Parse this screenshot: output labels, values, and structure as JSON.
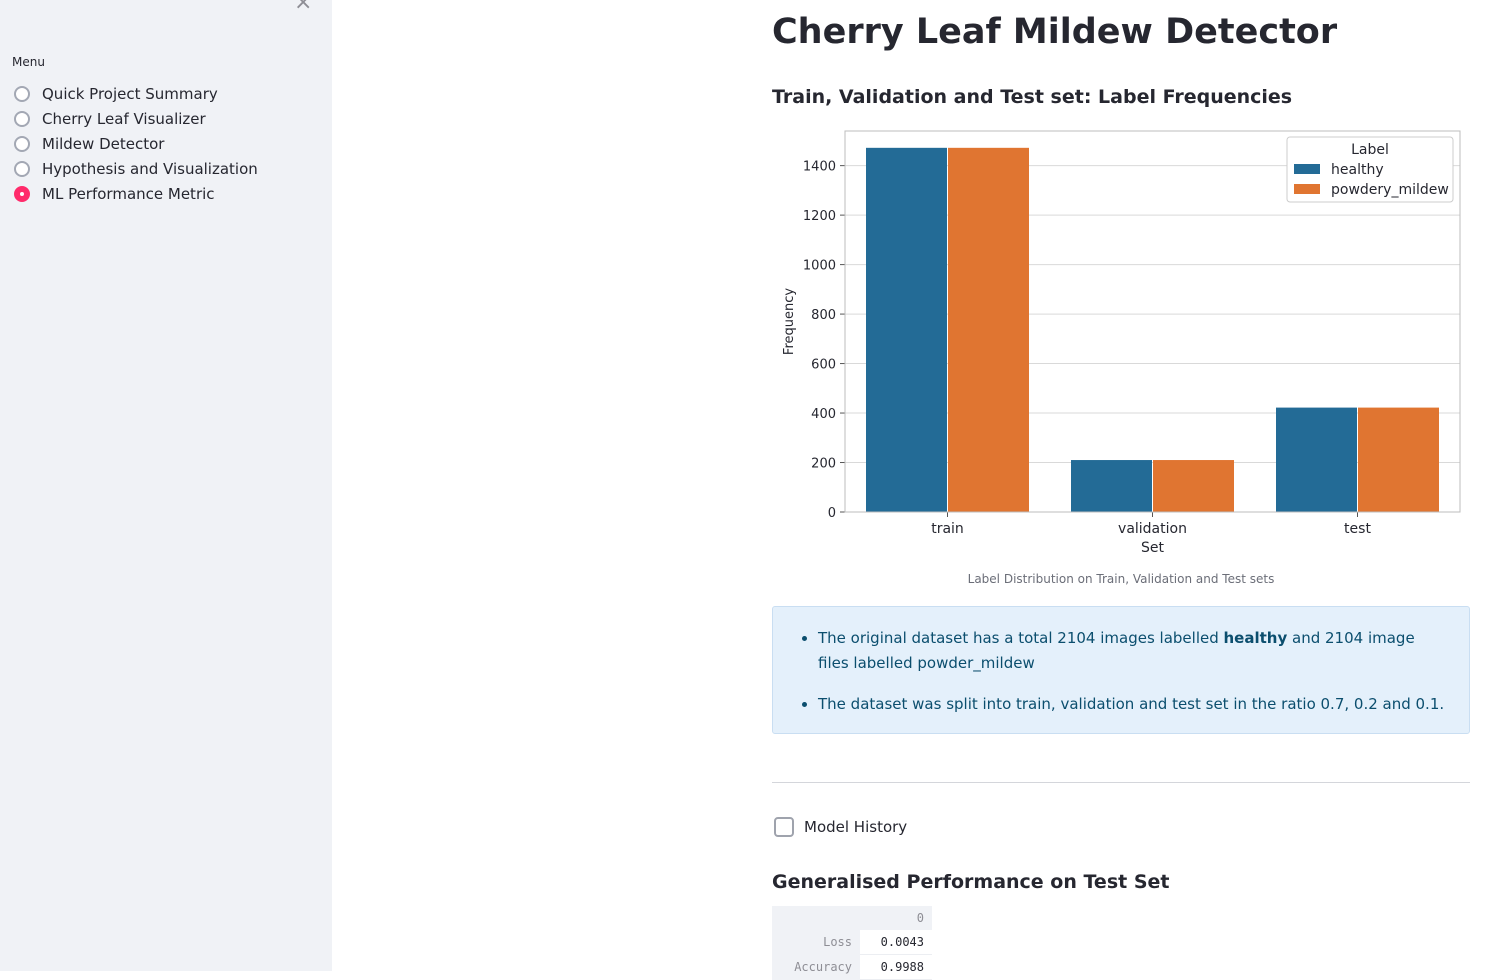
{
  "sidebar": {
    "close_glyph": "×",
    "menu_label": "Menu",
    "items": [
      {
        "label": "Quick Project Summary",
        "selected": false
      },
      {
        "label": "Cherry Leaf Visualizer",
        "selected": false
      },
      {
        "label": "Mildew Detector",
        "selected": false
      },
      {
        "label": "Hypothesis and Visualization",
        "selected": false
      },
      {
        "label": "ML Performance Metric",
        "selected": true
      }
    ]
  },
  "main": {
    "title": "Cherry Leaf Mildew Detector",
    "section_title": "Train, Validation and Test set: Label Frequencies",
    "chart_caption": "Label Distribution on Train, Validation and Test sets",
    "info": {
      "bullet1_pre": "The original dataset has a total 2104 images labelled ",
      "bullet1_bold": "healthy",
      "bullet1_post": " and 2104 image files labelled powder_mildew",
      "bullet2": "The dataset was split into train, validation and test set in the ratio 0.7, 0.2 and 0.1."
    },
    "checkbox_label": "Model History",
    "perf_title": "Generalised Performance on Test Set",
    "table": {
      "column": "0",
      "rows": [
        {
          "label": "Loss",
          "value": "0.0043"
        },
        {
          "label": "Accuracy",
          "value": "0.9988"
        }
      ]
    }
  },
  "chart_data": {
    "type": "bar",
    "categories": [
      "train",
      "validation",
      "test"
    ],
    "series": [
      {
        "name": "healthy",
        "values": [
          1472,
          210,
          422
        ],
        "color": "#236b96"
      },
      {
        "name": "powdery_mildew",
        "values": [
          1472,
          210,
          422
        ],
        "color": "#e07531"
      }
    ],
    "xlabel": "Set",
    "ylabel": "Frequency",
    "ylim": [
      0,
      1540
    ],
    "yticks": [
      0,
      200,
      400,
      600,
      800,
      1000,
      1200,
      1400
    ],
    "legend_title": "Label",
    "legend_position": "top-right",
    "grid": true
  }
}
